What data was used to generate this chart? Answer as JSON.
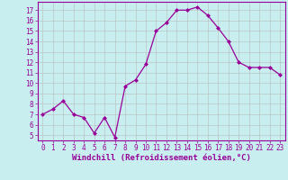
{
  "x": [
    0,
    1,
    2,
    3,
    4,
    5,
    6,
    7,
    8,
    9,
    10,
    11,
    12,
    13,
    14,
    15,
    16,
    17,
    18,
    19,
    20,
    21,
    22,
    23
  ],
  "y": [
    7.0,
    7.5,
    8.3,
    7.0,
    6.7,
    5.2,
    6.7,
    4.8,
    9.7,
    10.3,
    11.8,
    15.0,
    15.8,
    17.0,
    17.0,
    17.3,
    16.5,
    15.3,
    14.0,
    12.0,
    11.5,
    11.5,
    11.5,
    10.8
  ],
  "line_color": "#990099",
  "marker_color": "#990099",
  "bg_color": "#c8eef0",
  "grid_color": "#bbbbbb",
  "axis_color": "#990099",
  "xlabel": "Windchill (Refroidissement éolien,°C)",
  "ylim": [
    4.5,
    17.8
  ],
  "xlim": [
    -0.5,
    23.5
  ],
  "yticks": [
    5,
    6,
    7,
    8,
    9,
    10,
    11,
    12,
    13,
    14,
    15,
    16,
    17
  ],
  "xticks": [
    0,
    1,
    2,
    3,
    4,
    5,
    6,
    7,
    8,
    9,
    10,
    11,
    12,
    13,
    14,
    15,
    16,
    17,
    18,
    19,
    20,
    21,
    22,
    23
  ],
  "tick_fontsize": 5.5,
  "xlabel_fontsize": 6.5
}
